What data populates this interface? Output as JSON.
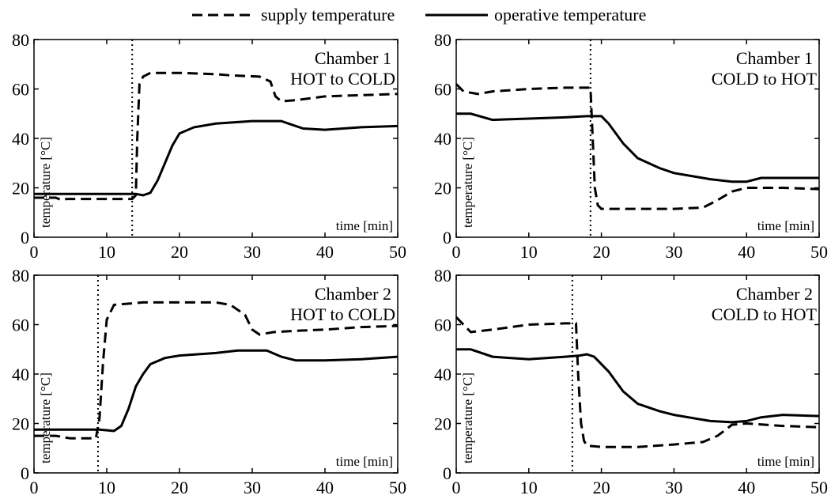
{
  "legend": {
    "supply_label": "supply temperature",
    "operative_label": "operative temperature"
  },
  "chart_data": [
    {
      "type": "line",
      "title": "Chamber 1",
      "subtitle": "HOT to COLD",
      "xlabel": "time [min]",
      "ylabel": "temperature [°C]",
      "xlim": [
        0,
        50
      ],
      "ylim": [
        0,
        80
      ],
      "xticks": [
        0,
        10,
        20,
        30,
        40,
        50
      ],
      "yticks": [
        0,
        20,
        40,
        60,
        80
      ],
      "switch_time": 13.5,
      "series": [
        {
          "name": "supply temperature",
          "style": "dashed",
          "x": [
            0,
            3,
            3.8,
            4.5,
            13.5,
            14,
            14.2,
            14.5,
            15,
            16,
            20,
            25,
            27,
            31,
            32.5,
            33.2,
            34,
            36,
            40,
            50
          ],
          "y": [
            16,
            16,
            15,
            15.5,
            15.5,
            17,
            40,
            62,
            65,
            66.5,
            66.5,
            66,
            65.5,
            65,
            63,
            57,
            55,
            55.5,
            57,
            58
          ]
        },
        {
          "name": "operative temperature",
          "style": "solid",
          "x": [
            0,
            14,
            15,
            16,
            17,
            18,
            19,
            20,
            22,
            25,
            30,
            34,
            35,
            37,
            40,
            45,
            50
          ],
          "y": [
            17.5,
            17.5,
            17,
            18,
            23,
            30,
            37,
            42,
            44.5,
            46,
            47,
            47,
            46,
            44,
            43.5,
            44.5,
            45
          ]
        }
      ]
    },
    {
      "type": "line",
      "title": "Chamber 1",
      "subtitle": "COLD to HOT",
      "xlabel": "time [min]",
      "ylabel": "temperature [°C]",
      "xlim": [
        0,
        50
      ],
      "ylim": [
        0,
        80
      ],
      "xticks": [
        0,
        10,
        20,
        30,
        40,
        50
      ],
      "yticks": [
        0,
        20,
        40,
        60,
        80
      ],
      "switch_time": 18.5,
      "series": [
        {
          "name": "supply temperature",
          "style": "dashed",
          "x": [
            0,
            1,
            3,
            5,
            10,
            15,
            18.5,
            18.8,
            19.1,
            19.5,
            20,
            21,
            25,
            30,
            34,
            36,
            38,
            40,
            45,
            50
          ],
          "y": [
            62,
            59,
            58,
            59,
            60,
            60.5,
            60.5,
            40,
            20,
            13,
            11.5,
            11.5,
            11.5,
            11.5,
            12,
            15,
            18.5,
            20,
            20,
            19.5
          ]
        },
        {
          "name": "operative temperature",
          "style": "solid",
          "x": [
            0,
            2,
            5,
            10,
            15,
            18,
            20,
            21,
            23,
            25,
            28,
            30,
            35,
            38,
            40,
            42,
            45,
            50
          ],
          "y": [
            50,
            50,
            47.5,
            48,
            48.5,
            49,
            49,
            46,
            38,
            32,
            28,
            26,
            23.5,
            22.5,
            22.5,
            24,
            24,
            24
          ]
        }
      ]
    },
    {
      "type": "line",
      "title": "Chamber 2",
      "subtitle": "HOT to COLD",
      "xlabel": "time [min]",
      "ylabel": "temperature [°C]",
      "xlim": [
        0,
        50
      ],
      "ylim": [
        0,
        80
      ],
      "xticks": [
        0,
        10,
        20,
        30,
        40,
        50
      ],
      "yticks": [
        0,
        20,
        40,
        60,
        80
      ],
      "switch_time": 8.8,
      "series": [
        {
          "name": "supply temperature",
          "style": "dashed",
          "x": [
            0,
            3,
            5,
            8.5,
            9,
            9.5,
            10,
            11,
            15,
            20,
            25,
            27,
            29,
            30,
            31,
            33,
            36,
            40,
            45,
            50
          ],
          "y": [
            15,
            15,
            14,
            14,
            22,
            45,
            62,
            68,
            69,
            69,
            69,
            68,
            64,
            58,
            56,
            57,
            57.5,
            58,
            59,
            59.5
          ]
        },
        {
          "name": "operative temperature",
          "style": "solid",
          "x": [
            0,
            9,
            11,
            12,
            13,
            14,
            15,
            16,
            18,
            20,
            25,
            28,
            32,
            34,
            36,
            40,
            45,
            50
          ],
          "y": [
            17.5,
            17.5,
            17,
            19,
            26,
            35,
            40,
            44,
            46.5,
            47.5,
            48.5,
            49.5,
            49.5,
            47,
            45.5,
            45.5,
            46,
            47
          ]
        }
      ]
    },
    {
      "type": "line",
      "title": "Chamber 2",
      "subtitle": "COLD to HOT",
      "xlabel": "time [min]",
      "ylabel": "temperature [°C]",
      "xlim": [
        0,
        50
      ],
      "ylim": [
        0,
        80
      ],
      "xticks": [
        0,
        10,
        20,
        30,
        40,
        50
      ],
      "yticks": [
        0,
        20,
        40,
        60,
        80
      ],
      "switch_time": 16,
      "series": [
        {
          "name": "supply temperature",
          "style": "dashed",
          "x": [
            0,
            1,
            2,
            5,
            10,
            15,
            16.5,
            16.8,
            17.2,
            17.6,
            18,
            20,
            25,
            30,
            34,
            36,
            38,
            40,
            45,
            50
          ],
          "y": [
            63,
            60,
            57,
            58,
            60,
            60.5,
            60.5,
            40,
            20,
            13,
            11,
            10.5,
            10.5,
            11.5,
            12.5,
            15,
            19.5,
            20,
            19,
            18.5
          ]
        },
        {
          "name": "operative temperature",
          "style": "solid",
          "x": [
            0,
            2,
            5,
            10,
            15,
            17,
            18,
            19,
            21,
            23,
            25,
            28,
            30,
            35,
            38,
            40,
            42,
            45,
            50
          ],
          "y": [
            50,
            50,
            47,
            46,
            47,
            47.5,
            48,
            47,
            41,
            33,
            28,
            25,
            23.5,
            21,
            20.5,
            21,
            22.5,
            23.5,
            23
          ]
        }
      ]
    }
  ]
}
